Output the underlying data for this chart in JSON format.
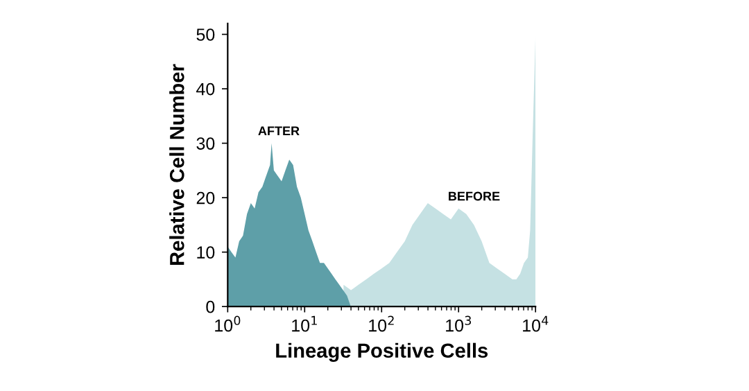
{
  "chart_data": {
    "type": "area",
    "xlabel": "Lineage Positive Cells",
    "ylabel": "Relative Cell Number",
    "log": "x",
    "grid": false,
    "legend": false,
    "xlim": [
      1,
      10000
    ],
    "xticks": [
      {
        "value": 1,
        "label": "10$^{0}$"
      },
      {
        "value": 10,
        "label": "10$^{1}$"
      },
      {
        "value": 100,
        "label": "10$^{2}$"
      },
      {
        "value": 1000,
        "label": "10$^{3}$"
      },
      {
        "value": 10000,
        "label": "10$^{4}$"
      }
    ],
    "ylim": [
      0,
      52
    ],
    "yticks": [
      0,
      10,
      20,
      30,
      40,
      50
    ],
    "series": [
      {
        "name": "BEFORE",
        "color": "#c5e1e3",
        "x": [
          32,
          40,
          50,
          63,
          79,
          100,
          126,
          158,
          200,
          251,
          316,
          398,
          501,
          631,
          794,
          1000,
          1259,
          1585,
          1995,
          2512,
          3162,
          3981,
          5012,
          5623,
          6310,
          7079,
          7943,
          8511,
          9120,
          9550,
          10000
        ],
        "values": [
          4,
          3,
          4,
          5,
          6,
          7,
          8,
          10,
          12,
          15,
          17,
          19,
          18,
          17,
          16,
          18,
          17,
          15,
          12,
          8,
          7,
          6,
          5,
          5,
          6,
          8,
          9,
          14,
          30,
          40,
          50
        ]
      },
      {
        "name": "AFTER",
        "color": "#5e9fa8",
        "x": [
          1,
          1.12,
          1.26,
          1.41,
          1.58,
          1.78,
          2.0,
          2.24,
          2.51,
          2.82,
          3.16,
          3.55,
          3.72,
          3.98,
          4.47,
          5.01,
          5.62,
          6.31,
          7.08,
          7.94,
          8.91,
          10,
          11.2,
          12.6,
          14.1,
          15.8,
          17.8,
          20,
          22.4,
          25.1,
          28.2,
          31.6,
          35.5,
          39.8
        ],
        "values": [
          11,
          10,
          9,
          12,
          13,
          17,
          19,
          18,
          21,
          22,
          24,
          26,
          30,
          25,
          24,
          23,
          25,
          27,
          26,
          22,
          20,
          17,
          14,
          12,
          10,
          8,
          8,
          7,
          6,
          5,
          4,
          3,
          2,
          0
        ]
      }
    ]
  }
}
